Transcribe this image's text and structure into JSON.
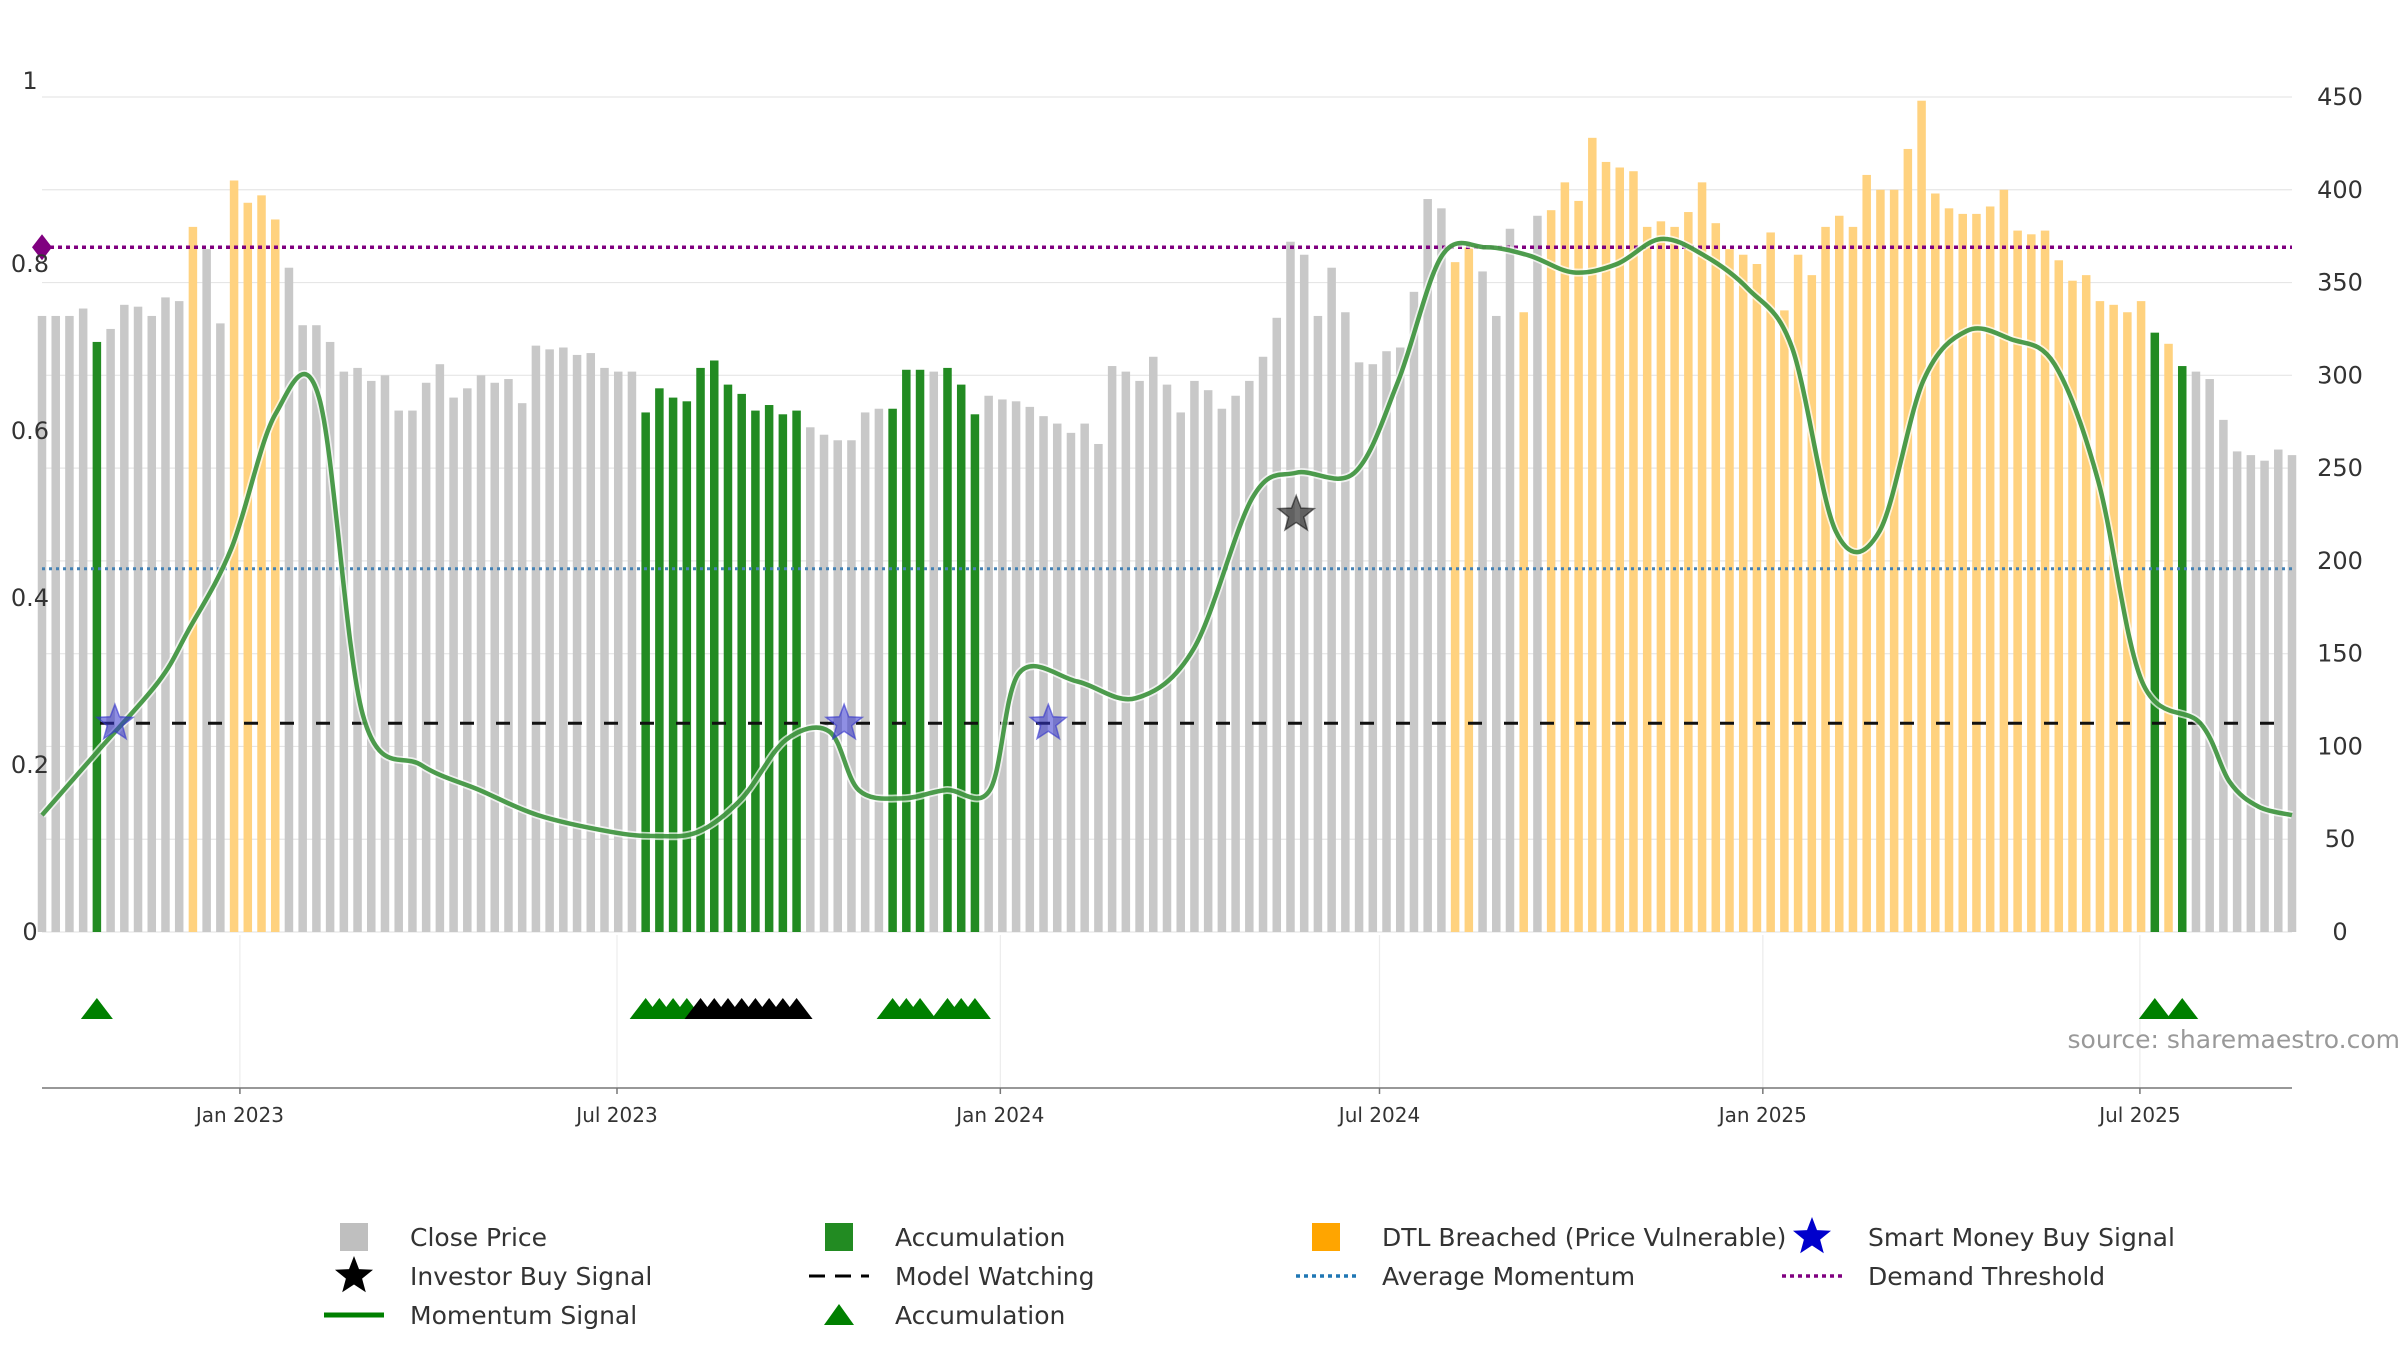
{
  "chart_data": {
    "type": "bar",
    "source": "source: sharemaestro.com",
    "left_axis": {
      "ticks": [
        0,
        0.2,
        0.4,
        0.6,
        0.8,
        1
      ],
      "labels": [
        "0",
        "0.2",
        "0.4",
        "0.6",
        "0.8",
        "1"
      ],
      "range": [
        0,
        1
      ]
    },
    "right_axis": {
      "ticks": [
        0,
        50,
        100,
        150,
        200,
        250,
        300,
        350,
        400,
        450
      ],
      "labels": [
        "0",
        "50",
        "100",
        "150",
        "200",
        "250",
        "300",
        "350",
        "400",
        "450"
      ],
      "range": [
        0,
        450
      ]
    },
    "x_axis": {
      "range": [
        "2022-09-28",
        "2025-09-12"
      ],
      "ticks": [
        {
          "date": "2023-01-01",
          "label": "Jan 2023"
        },
        {
          "date": "2023-07-01",
          "label": "Jul 2023"
        },
        {
          "date": "2024-01-01",
          "label": "Jan 2024"
        },
        {
          "date": "2024-07-01",
          "label": "Jul 2024"
        },
        {
          "date": "2025-01-01",
          "label": "Jan 2025"
        },
        {
          "date": "2025-07-01",
          "label": "Jul 2025"
        }
      ]
    },
    "colors": {
      "close": "#c8c8c8",
      "accumulation": "#228b22",
      "dtl": "#ffd27f",
      "momentum": "#2e8b2e",
      "momentum_strong": "#008000",
      "smart_money": "#3333cc",
      "investor": "#333333",
      "avg_momentum": "#4682b4",
      "demand": "#800080",
      "model_watching": "#111111",
      "grid": "#e6e6e6"
    },
    "weekly_close": [
      332,
      332,
      332,
      336,
      318,
      325,
      338,
      337,
      332,
      342,
      340,
      380,
      368,
      328,
      405,
      393,
      397,
      384,
      358,
      327,
      327,
      318,
      302,
      304,
      297,
      300,
      281,
      281,
      296,
      306,
      288,
      293,
      300,
      296,
      298,
      285,
      316,
      314,
      315,
      311,
      312,
      304,
      302,
      302,
      280,
      293,
      288,
      286,
      304,
      308,
      295,
      290,
      281,
      284,
      279,
      281,
      272,
      268,
      265,
      265,
      280,
      282,
      282,
      303,
      303,
      302,
      304,
      295,
      279,
      289,
      287,
      286,
      283,
      278,
      274,
      269,
      274,
      263,
      305,
      302,
      297,
      310,
      295,
      280,
      297,
      292,
      282,
      289,
      297,
      310,
      331,
      372,
      365,
      332,
      358,
      334,
      307,
      306,
      313,
      315,
      345,
      395,
      390,
      361,
      369,
      356,
      332,
      379,
      334,
      386,
      389,
      404,
      394,
      428,
      415,
      412,
      410,
      380,
      383,
      380,
      388,
      404,
      382,
      368,
      365,
      360,
      377,
      335,
      365,
      354,
      380,
      386,
      380,
      408,
      400,
      400,
      422,
      448,
      398,
      390,
      387,
      387,
      391,
      400,
      378,
      376,
      378,
      362,
      351,
      354,
      340,
      338,
      334,
      340,
      323,
      317,
      305,
      302,
      298,
      276,
      259,
      257,
      254,
      260,
      257
    ],
    "series": [
      {
        "name": "Close Price",
        "type": "bar"
      },
      {
        "name": "Accumulation",
        "type": "bar",
        "week_indices": [
          4,
          44,
          45,
          46,
          47,
          48,
          49,
          50,
          51,
          52,
          53,
          54,
          55,
          62,
          63,
          64,
          66,
          67,
          68,
          154,
          156
        ]
      },
      {
        "name": "DTL Breached (Price Vulnerable)",
        "type": "bar",
        "week_indices": [
          11,
          14,
          15,
          16,
          17,
          103,
          104,
          108,
          110,
          111,
          112,
          113,
          114,
          115,
          116,
          117,
          118,
          119,
          120,
          121,
          122,
          123,
          124,
          125,
          126,
          127,
          128,
          129,
          130,
          131,
          132,
          133,
          134,
          135,
          136,
          137,
          138,
          139,
          140,
          141,
          142,
          143,
          144,
          145,
          146,
          147,
          148,
          149,
          150,
          151,
          152,
          153,
          154,
          155,
          156
        ]
      },
      {
        "name": "Momentum Signal",
        "type": "line",
        "x": [
          "2022-09-28",
          "2022-10-26",
          "2022-11-23",
          "2022-12-07",
          "2022-12-28",
          "2023-01-18",
          "2023-02-08",
          "2023-03-01",
          "2023-03-29",
          "2023-04-26",
          "2023-05-24",
          "2023-06-28",
          "2023-07-19",
          "2023-08-09",
          "2023-08-30",
          "2023-09-20",
          "2023-10-11",
          "2023-10-25",
          "2023-11-15",
          "2023-12-06",
          "2023-12-27",
          "2024-01-10",
          "2024-02-07",
          "2024-03-06",
          "2024-04-03",
          "2024-05-01",
          "2024-05-22",
          "2024-06-19",
          "2024-07-10",
          "2024-07-31",
          "2024-08-21",
          "2024-09-11",
          "2024-10-02",
          "2024-10-23",
          "2024-11-13",
          "2024-12-04",
          "2024-12-25",
          "2025-01-15",
          "2025-02-05",
          "2025-02-26",
          "2025-03-19",
          "2025-04-09",
          "2025-04-30",
          "2025-05-21",
          "2025-06-11",
          "2025-07-02",
          "2025-07-30",
          "2025-08-13",
          "2025-08-27",
          "2025-09-12"
        ],
        "y": [
          0.14,
          0.22,
          0.3,
          0.36,
          0.46,
          0.62,
          0.64,
          0.26,
          0.2,
          0.17,
          0.14,
          0.12,
          0.115,
          0.12,
          0.16,
          0.23,
          0.24,
          0.17,
          0.16,
          0.17,
          0.17,
          0.31,
          0.3,
          0.28,
          0.34,
          0.52,
          0.55,
          0.55,
          0.66,
          0.81,
          0.82,
          0.81,
          0.79,
          0.8,
          0.83,
          0.81,
          0.77,
          0.7,
          0.48,
          0.48,
          0.66,
          0.72,
          0.71,
          0.68,
          0.54,
          0.3,
          0.25,
          0.18,
          0.15,
          0.14
        ]
      },
      {
        "name": "Average Momentum",
        "type": "hline",
        "y": 0.435
      },
      {
        "name": "Demand Threshold",
        "type": "hline",
        "y": 0.82
      },
      {
        "name": "Model Watching",
        "type": "hline",
        "y": 0.25
      },
      {
        "name": "Smart Money Buy Signal",
        "type": "marker",
        "points": [
          {
            "x": "2022-11-02",
            "y": 0.25
          },
          {
            "x": "2023-10-18",
            "y": 0.25
          },
          {
            "x": "2024-01-24",
            "y": 0.25
          }
        ]
      },
      {
        "name": "Investor Buy Signal",
        "type": "marker",
        "points": [
          {
            "x": "2024-05-22",
            "y": 0.5
          }
        ]
      },
      {
        "name": "Accumulation",
        "type": "triangle",
        "green_indices": [
          4,
          44,
          45,
          46,
          47,
          62,
          63,
          64,
          66,
          67,
          68,
          154,
          156
        ],
        "black_indices": [
          48,
          49,
          50,
          51,
          52,
          53,
          54,
          55
        ]
      }
    ],
    "legend": {
      "placement": "bottom",
      "items": [
        {
          "label": "Close Price",
          "symbol": "square",
          "color": "#bfbfbf"
        },
        {
          "label": "Accumulation",
          "symbol": "square",
          "color": "#228b22"
        },
        {
          "label": "DTL Breached (Price Vulnerable)",
          "symbol": "square",
          "color": "#ffa500"
        },
        {
          "label": "Smart Money Buy Signal",
          "symbol": "star",
          "color": "#0000cc"
        },
        {
          "label": "Investor Buy Signal",
          "symbol": "star",
          "color": "#000000"
        },
        {
          "label": "Model Watching",
          "symbol": "dash",
          "color": "#000000"
        },
        {
          "label": "Average Momentum",
          "symbol": "dot",
          "color": "#1f77b4"
        },
        {
          "label": "Demand Threshold",
          "symbol": "dot",
          "color": "#800080"
        },
        {
          "label": "Momentum Signal",
          "symbol": "line",
          "color": "#008000"
        },
        {
          "label": "Accumulation",
          "symbol": "triangle",
          "color": "#008000"
        }
      ]
    }
  }
}
